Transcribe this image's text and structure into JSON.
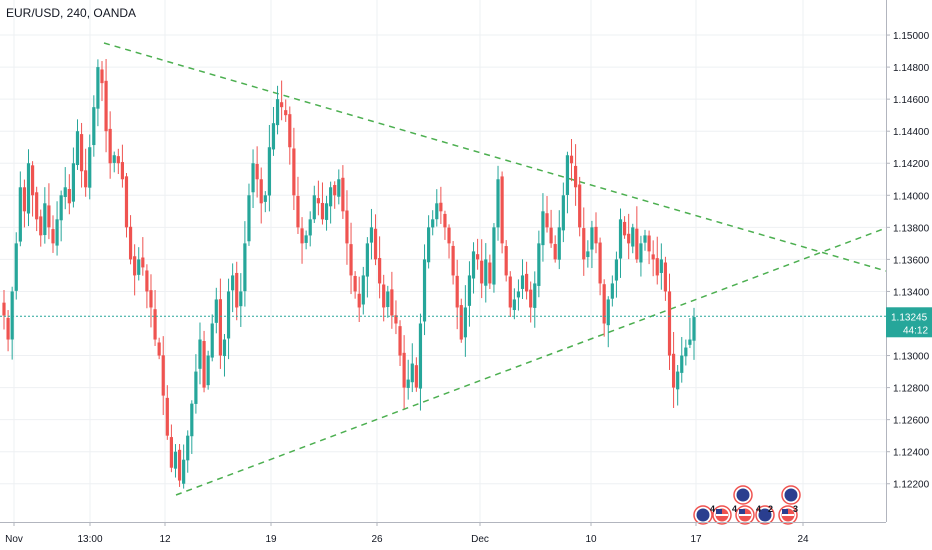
{
  "header": {
    "title": "EUR/USD, 240, OANDA"
  },
  "colors": {
    "up": "#26a69a",
    "down": "#ef5350",
    "trendline": "#4caf50",
    "price_line": "#26a69a",
    "grid": "#eef0f3",
    "axis_text": "#131722",
    "price_label_bg": "#26a69a"
  },
  "chart_data": {
    "type": "candlestick",
    "title": "EUR/USD, 240, OANDA",
    "xlabel": "",
    "ylabel": "",
    "ylim": [
      1.1198,
      1.152
    ],
    "grid": true,
    "x_ticks": [
      "Nov",
      "13:00",
      "12",
      "19",
      "26",
      "Dec",
      "10",
      "17",
      "24"
    ],
    "y_ticks": [
      "1.15000",
      "1.14800",
      "1.14600",
      "1.14400",
      "1.14200",
      "1.14000",
      "1.13800",
      "1.13600",
      "1.13400",
      "1.13245",
      "1.13000",
      "1.12800",
      "1.12600",
      "1.12400",
      "1.12200"
    ],
    "current_price": "1.13245",
    "countdown": "44:12",
    "current_value": 1.13245,
    "trendlines": [
      {
        "name": "",
        "from": [
          "Nov 13:00",
          1.149
        ],
        "to": [
          "Dec 24+",
          1.1353
        ]
      },
      {
        "name": "",
        "from": [
          "Nov 12",
          1.1218
        ],
        "to": [
          "Dec 24+",
          1.138
        ]
      }
    ],
    "event_markers": [
      {
        "label": "4"
      },
      {
        "label": "4"
      },
      {
        "label": "4"
      },
      {
        "label": "2"
      },
      {
        "label": "3"
      }
    ],
    "candles_close": [
      1.1325,
      1.131,
      1.134,
      1.137,
      1.1405,
      1.139,
      1.142,
      1.14,
      1.1385,
      1.1375,
      1.1395,
      1.138,
      1.137,
      1.1385,
      1.14,
      1.1405,
      1.1395,
      1.142,
      1.144,
      1.1415,
      1.1405,
      1.143,
      1.1455,
      1.148,
      1.147,
      1.144,
      1.142,
      1.1425,
      1.142,
      1.141,
      1.138,
      1.136,
      1.135,
      1.136,
      1.1355,
      1.134,
      1.133,
      1.131,
      1.13,
      1.1275,
      1.125,
      1.123,
      1.124,
      1.1222,
      1.1235,
      1.125,
      1.127,
      1.129,
      1.131,
      1.128,
      1.13,
      1.132,
      1.1335,
      1.13,
      1.131,
      1.134,
      1.135,
      1.133,
      1.134,
      1.137,
      1.14,
      1.142,
      1.141,
      1.1395,
      1.14,
      1.143,
      1.1445,
      1.146,
      1.1455,
      1.145,
      1.143,
      1.14,
      1.138,
      1.137,
      1.1375,
      1.1385,
      1.14,
      1.1395,
      1.1385,
      1.1395,
      1.1405,
      1.14,
      1.141,
      1.139,
      1.137,
      1.135,
      1.134,
      1.133,
      1.135,
      1.137,
      1.138,
      1.136,
      1.1345,
      1.133,
      1.134,
      1.1325,
      1.132,
      1.13,
      1.128,
      1.1285,
      1.1295,
      1.128,
      1.132,
      1.136,
      1.138,
      1.1385,
      1.1395,
      1.139,
      1.138,
      1.137,
      1.135,
      1.133,
      1.131,
      1.133,
      1.135,
      1.1365,
      1.136,
      1.1345,
      1.136,
      1.1345,
      1.138,
      1.141,
      1.137,
      1.135,
      1.133,
      1.1335,
      1.134,
      1.135,
      1.134,
      1.133,
      1.1345,
      1.137,
      1.139,
      1.138,
      1.137,
      1.136,
      1.138,
      1.14,
      1.1425,
      1.142,
      1.1405,
      1.138,
      1.136,
      1.1365,
      1.138,
      1.137,
      1.1345,
      1.132,
      1.1335,
      1.1345,
      1.136,
      1.1385,
      1.1375,
      1.137,
      1.138,
      1.136,
      1.137,
      1.1375,
      1.1365,
      1.136,
      1.135,
      1.136,
      1.134,
      1.13,
      1.128,
      1.129,
      1.13,
      1.1305,
      1.131,
      1.1324
    ]
  }
}
